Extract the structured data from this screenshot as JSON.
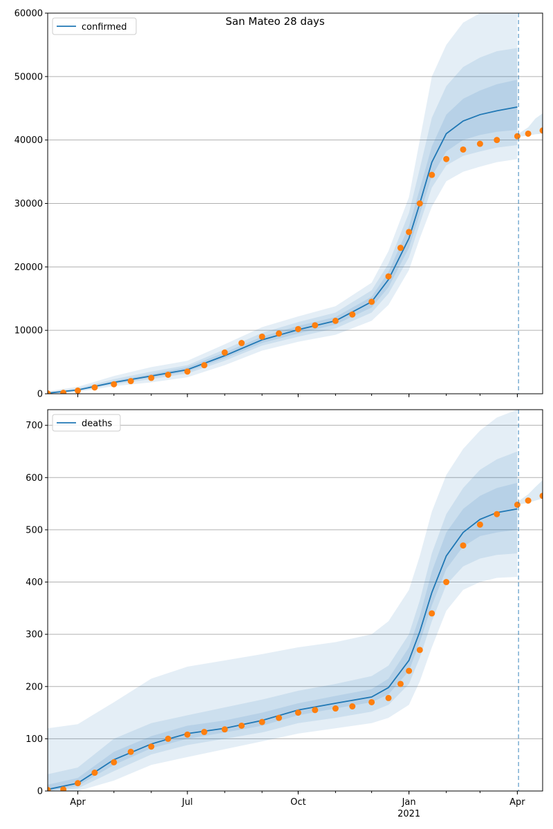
{
  "title": "San Mateo 28 days",
  "colors": {
    "model_line": "#1f77b4",
    "band": "#1f77b4",
    "observed": "#ff7f0e",
    "grid": "#b0b0b0",
    "forecast_marker": "#1f77b4"
  },
  "chart_data": [
    {
      "type": "line",
      "legend": "confirmed",
      "legend_placement": "top-left",
      "grid": "y",
      "ylim": [
        0,
        60000
      ],
      "y_ticks": [
        0,
        10000,
        20000,
        30000,
        40000,
        50000,
        60000
      ],
      "y_tick_labels": [
        "0",
        "10000",
        "20000",
        "30000",
        "40000",
        "50000",
        "60000"
      ],
      "xlim": [
        "2020-03-07",
        "2021-04-22"
      ],
      "forecast_start": "2021-04-02",
      "model_series": {
        "x": [
          "2020-03-07",
          "2020-04-01",
          "2020-05-01",
          "2020-06-01",
          "2020-07-01",
          "2020-08-01",
          "2020-09-01",
          "2020-10-01",
          "2020-11-01",
          "2020-12-01",
          "2020-12-15",
          "2021-01-01",
          "2021-01-10",
          "2021-01-20",
          "2021-02-01",
          "2021-02-15",
          "2021-03-01",
          "2021-03-15",
          "2021-04-01"
        ],
        "y": [
          100,
          600,
          1800,
          2800,
          3800,
          6000,
          8500,
          10100,
          11500,
          14500,
          18000,
          24500,
          30000,
          36500,
          41000,
          43000,
          44000,
          44600,
          45200
        ]
      },
      "bands": [
        {
          "x": [
            "2020-03-07",
            "2020-04-01",
            "2020-05-01",
            "2020-06-01",
            "2020-07-01",
            "2020-08-01",
            "2020-09-01",
            "2020-10-01",
            "2020-11-01",
            "2020-12-01",
            "2020-12-15",
            "2021-01-01",
            "2021-01-10",
            "2021-01-20",
            "2021-02-01",
            "2021-02-15",
            "2021-03-01",
            "2021-03-15",
            "2021-04-01"
          ],
          "lower": [
            0,
            300,
            1200,
            1800,
            2600,
            4500,
            6800,
            8200,
            9300,
            11500,
            14000,
            19500,
            24500,
            29500,
            33500,
            35000,
            35800,
            36500,
            37000
          ],
          "upper": [
            400,
            1100,
            2800,
            4200,
            5200,
            7800,
            10500,
            12200,
            13800,
            17500,
            22500,
            31000,
            40000,
            50000,
            55000,
            58500,
            60000,
            60000,
            60000
          ]
        },
        {
          "x": [
            "2020-03-07",
            "2020-04-01",
            "2020-05-01",
            "2020-06-01",
            "2020-07-01",
            "2020-08-01",
            "2020-09-01",
            "2020-10-01",
            "2020-11-01",
            "2020-12-01",
            "2020-12-15",
            "2021-01-01",
            "2021-01-10",
            "2021-01-20",
            "2021-02-01",
            "2021-02-15",
            "2021-03-01",
            "2021-03-15",
            "2021-04-01"
          ],
          "lower": [
            50,
            450,
            1500,
            2300,
            3200,
            5200,
            7600,
            9000,
            10300,
            12800,
            15800,
            21500,
            26800,
            32500,
            36000,
            37500,
            38200,
            38800,
            39200
          ],
          "upper": [
            250,
            850,
            2300,
            3500,
            4500,
            7000,
            9600,
            11300,
            12800,
            16300,
            20500,
            28500,
            35500,
            43500,
            48500,
            51500,
            53000,
            54000,
            54500
          ]
        },
        {
          "x": [
            "2020-03-07",
            "2020-04-01",
            "2020-05-01",
            "2020-06-01",
            "2020-07-01",
            "2020-08-01",
            "2020-09-01",
            "2020-10-01",
            "2020-11-01",
            "2020-12-01",
            "2020-12-15",
            "2021-01-01",
            "2021-01-10",
            "2021-01-20",
            "2021-02-01",
            "2021-02-15",
            "2021-03-01",
            "2021-03-15",
            "2021-04-01"
          ],
          "lower": [
            80,
            520,
            1650,
            2550,
            3500,
            5600,
            8000,
            9500,
            10900,
            13600,
            16800,
            23000,
            28300,
            34300,
            38200,
            40000,
            40800,
            41300,
            41600
          ],
          "upper": [
            180,
            700,
            2000,
            3100,
            4200,
            6500,
            9000,
            10700,
            12100,
            15300,
            19200,
            26400,
            32300,
            39000,
            44000,
            46500,
            47800,
            48800,
            49500
          ]
        }
      ],
      "observed_band": {
        "x": [
          "2021-04-02",
          "2021-04-10",
          "2021-04-16",
          "2021-04-22"
        ],
        "lower": [
          40500,
          40700,
          40900,
          41000
        ],
        "upper": [
          41000,
          42000,
          43400,
          44200
        ]
      },
      "observed": {
        "x": [
          "2020-03-07",
          "2020-03-20",
          "2020-04-01",
          "2020-04-15",
          "2020-05-01",
          "2020-05-15",
          "2020-06-01",
          "2020-06-15",
          "2020-07-01",
          "2020-07-15",
          "2020-08-01",
          "2020-08-15",
          "2020-09-01",
          "2020-09-15",
          "2020-10-01",
          "2020-10-15",
          "2020-11-01",
          "2020-11-15",
          "2020-12-01",
          "2020-12-15",
          "2020-12-25",
          "2021-01-01",
          "2021-01-10",
          "2021-01-20",
          "2021-02-01",
          "2021-02-15",
          "2021-03-01",
          "2021-03-15",
          "2021-04-01",
          "2021-04-10",
          "2021-04-22"
        ],
        "y": [
          50,
          150,
          500,
          1000,
          1500,
          2000,
          2500,
          3000,
          3500,
          4500,
          6500,
          8000,
          9000,
          9500,
          10200,
          10800,
          11500,
          12500,
          14500,
          18500,
          23000,
          25500,
          30000,
          34500,
          37000,
          38500,
          39400,
          40000,
          40600,
          41000,
          41500
        ]
      }
    },
    {
      "type": "line",
      "legend": "deaths",
      "legend_placement": "top-left",
      "grid": "y",
      "ylim": [
        0,
        730
      ],
      "y_ticks": [
        0,
        100,
        200,
        300,
        400,
        500,
        600,
        700
      ],
      "y_tick_labels": [
        "0",
        "100",
        "200",
        "300",
        "400",
        "500",
        "600",
        "700"
      ],
      "xlim": [
        "2020-03-07",
        "2021-04-22"
      ],
      "forecast_start": "2021-04-02",
      "x_ticks": [
        "2020-04-01",
        "2020-07-01",
        "2020-10-01",
        "2021-01-01",
        "2021-04-01"
      ],
      "x_tick_labels": [
        "Apr",
        "Jul",
        "Oct",
        "Jan",
        "Apr"
      ],
      "x_year_label": "2021",
      "model_series": {
        "x": [
          "2020-03-07",
          "2020-04-01",
          "2020-05-01",
          "2020-06-01",
          "2020-07-01",
          "2020-08-01",
          "2020-09-01",
          "2020-10-01",
          "2020-11-01",
          "2020-12-01",
          "2020-12-15",
          "2021-01-01",
          "2021-01-10",
          "2021-01-20",
          "2021-02-01",
          "2021-02-15",
          "2021-03-01",
          "2021-03-15",
          "2021-04-01"
        ],
        "y": [
          3,
          15,
          60,
          90,
          110,
          120,
          135,
          155,
          168,
          180,
          198,
          250,
          305,
          380,
          450,
          495,
          520,
          533,
          540
        ]
      },
      "bands": [
        {
          "x": [
            "2020-03-07",
            "2020-04-01",
            "2020-05-01",
            "2020-06-01",
            "2020-07-01",
            "2020-08-01",
            "2020-09-01",
            "2020-10-01",
            "2020-11-01",
            "2020-12-01",
            "2020-12-15",
            "2021-01-01",
            "2021-01-10",
            "2021-01-20",
            "2021-02-01",
            "2021-02-15",
            "2021-03-01",
            "2021-03-15",
            "2021-04-01"
          ],
          "lower": [
            0,
            0,
            20,
            50,
            65,
            80,
            95,
            110,
            120,
            130,
            140,
            165,
            210,
            275,
            345,
            385,
            400,
            408,
            410
          ],
          "upper": [
            120,
            128,
            170,
            215,
            238,
            250,
            262,
            275,
            285,
            300,
            325,
            385,
            450,
            535,
            605,
            655,
            690,
            715,
            730
          ]
        },
        {
          "x": [
            "2020-03-07",
            "2020-04-01",
            "2020-05-01",
            "2020-06-01",
            "2020-07-01",
            "2020-08-01",
            "2020-09-01",
            "2020-10-01",
            "2020-11-01",
            "2020-12-01",
            "2020-12-15",
            "2021-01-01",
            "2021-01-10",
            "2021-01-20",
            "2021-02-01",
            "2021-02-15",
            "2021-03-01",
            "2021-03-15",
            "2021-04-01"
          ],
          "lower": [
            0,
            5,
            38,
            70,
            88,
            100,
            112,
            130,
            140,
            152,
            165,
            205,
            255,
            325,
            395,
            430,
            445,
            452,
            455
          ],
          "upper": [
            32,
            45,
            100,
            130,
            145,
            160,
            175,
            192,
            205,
            220,
            240,
            300,
            365,
            455,
            530,
            580,
            615,
            635,
            650
          ]
        },
        {
          "x": [
            "2020-03-07",
            "2020-04-01",
            "2020-05-01",
            "2020-06-01",
            "2020-07-01",
            "2020-08-01",
            "2020-09-01",
            "2020-10-01",
            "2020-11-01",
            "2020-12-01",
            "2020-12-15",
            "2021-01-01",
            "2021-01-10",
            "2021-01-20",
            "2021-02-01",
            "2021-02-15",
            "2021-03-01",
            "2021-03-15",
            "2021-04-01"
          ],
          "lower": [
            0,
            10,
            50,
            82,
            100,
            112,
            125,
            145,
            158,
            170,
            185,
            230,
            285,
            355,
            425,
            468,
            488,
            495,
            500
          ],
          "upper": [
            12,
            25,
            75,
            105,
            125,
            135,
            150,
            168,
            182,
            195,
            215,
            275,
            335,
            420,
            495,
            540,
            565,
            580,
            590
          ]
        }
      ],
      "observed_band": {
        "x": [
          "2021-04-02",
          "2021-04-10",
          "2021-04-16",
          "2021-04-22"
        ],
        "lower": [
          548,
          552,
          556,
          560
        ],
        "upper": [
          555,
          568,
          582,
          595
        ]
      },
      "observed": {
        "x": [
          "2020-03-07",
          "2020-03-20",
          "2020-04-01",
          "2020-04-15",
          "2020-05-01",
          "2020-05-15",
          "2020-06-01",
          "2020-06-15",
          "2020-07-01",
          "2020-07-15",
          "2020-08-01",
          "2020-08-15",
          "2020-09-01",
          "2020-09-15",
          "2020-10-01",
          "2020-10-15",
          "2020-11-01",
          "2020-11-15",
          "2020-12-01",
          "2020-12-15",
          "2020-12-25",
          "2021-01-01",
          "2021-01-10",
          "2021-01-20",
          "2021-02-01",
          "2021-02-15",
          "2021-03-01",
          "2021-03-15",
          "2021-04-01",
          "2021-04-10",
          "2021-04-22"
        ],
        "y": [
          2,
          3,
          15,
          35,
          55,
          75,
          85,
          100,
          108,
          113,
          118,
          125,
          132,
          140,
          150,
          155,
          158,
          162,
          170,
          178,
          205,
          230,
          270,
          340,
          400,
          470,
          510,
          530,
          548,
          556,
          565
        ]
      }
    }
  ]
}
